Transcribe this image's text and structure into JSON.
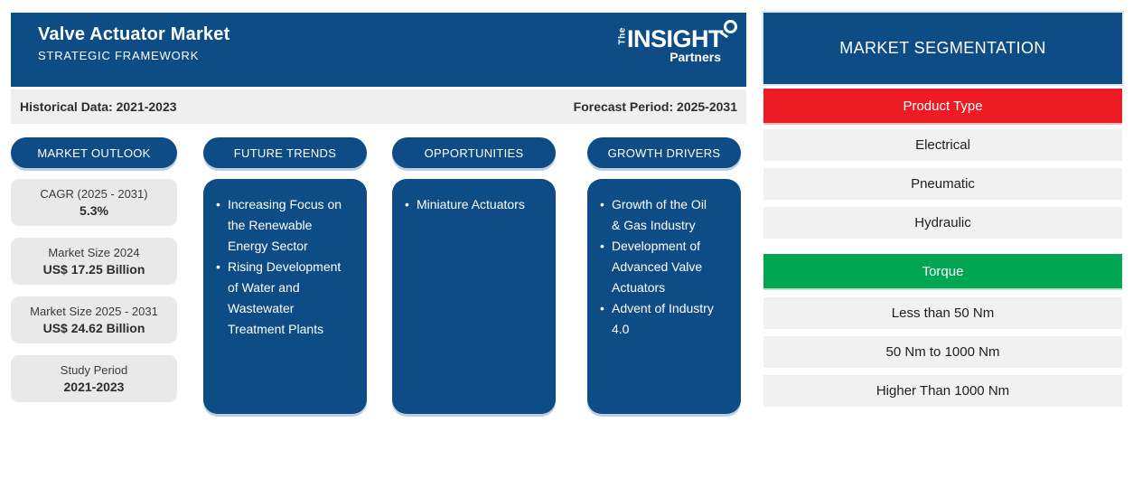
{
  "header": {
    "title": "Valve Actuator Market",
    "subtitle": "STRATEGIC FRAMEWORK",
    "logo": {
      "the": "The",
      "insight": "INSIGHT",
      "partners": "Partners"
    }
  },
  "period_bar": {
    "historical": "Historical Data: 2021-2023",
    "forecast": "Forecast Period: 2025-2031"
  },
  "columns": [
    {
      "label": "MARKET OUTLOOK",
      "stats": [
        {
          "label": "CAGR (2025 - 2031)",
          "value": "5.3%"
        },
        {
          "label": "Market Size 2024",
          "value": "US$ 17.25 Billion"
        },
        {
          "label": "Market Size 2025 - 2031",
          "value": "US$ 24.62 Billion"
        },
        {
          "label": "Study Period",
          "value": "2021-2023"
        }
      ]
    },
    {
      "label": "FUTURE TRENDS",
      "bullets": [
        "Increasing Focus on the Renewable Energy Sector",
        "Rising Development of Water and Wastewater Treatment Plants"
      ]
    },
    {
      "label": "OPPORTUNITIES",
      "bullets": [
        "Miniature Actuators"
      ]
    },
    {
      "label": "GROWTH DRIVERS",
      "bullets": [
        "Growth of the Oil & Gas Industry",
        "Development of Advanced Valve Actuators",
        "Advent of Industry 4.0"
      ]
    }
  ],
  "segmentation": {
    "title": "MARKET SEGMENTATION",
    "groups": [
      {
        "label": "Product Type",
        "color": "#ed1c24",
        "items": [
          "Electrical",
          "Pneumatic",
          "Hydraulic"
        ]
      },
      {
        "label": "Torque",
        "color": "#00a651",
        "items": [
          "Less than 50 Nm",
          "50 Nm to 1000 Nm",
          "Higher Than 1000 Nm"
        ]
      }
    ]
  },
  "colors": {
    "primary_blue": "#0d4c84",
    "red": "#ed1c24",
    "green": "#00a651"
  }
}
